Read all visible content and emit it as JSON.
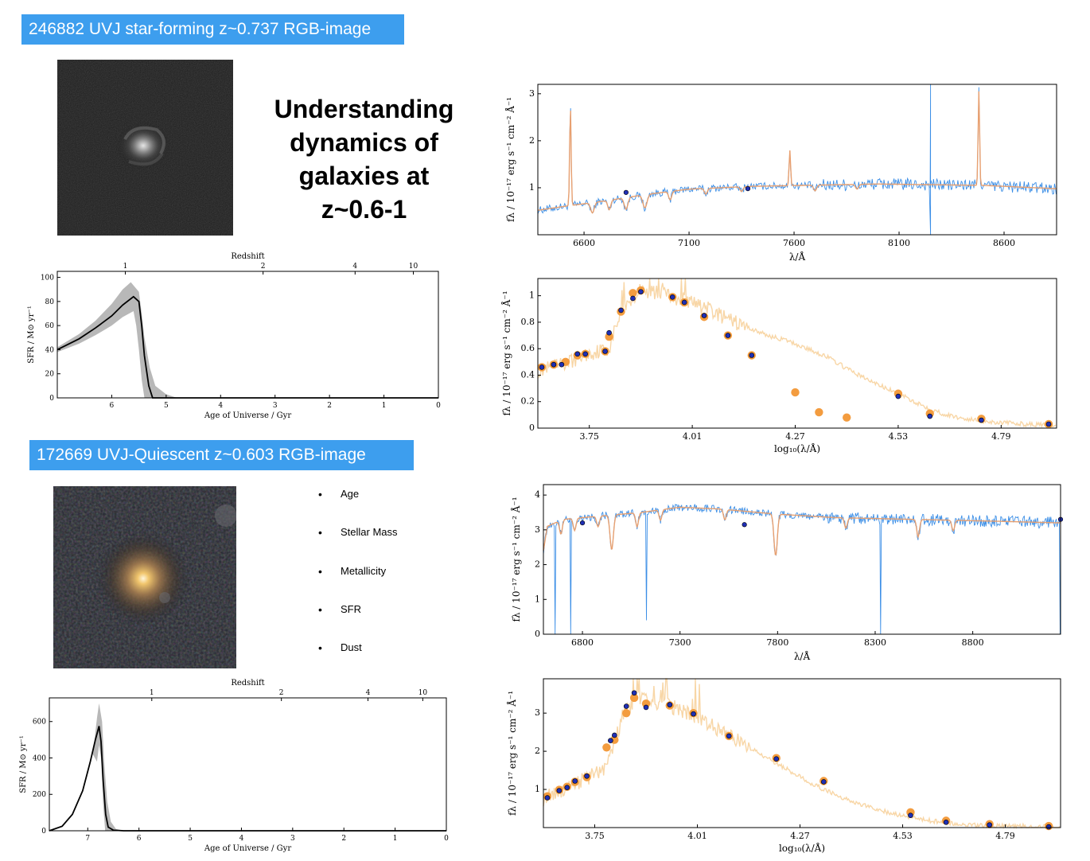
{
  "top_section": {
    "banner": "246882 UVJ star-forming z~0.737 RGB-image",
    "headline": [
      "Understanding",
      "dynamics of",
      "galaxies at",
      "z~0.6-1"
    ]
  },
  "bottom_section": {
    "banner": "172669 UVJ-Quiescent z~0.603 RGB-image",
    "bullets": [
      "Age",
      "Stellar Mass",
      "Metallicity",
      "SFR",
      "Dust"
    ]
  },
  "colors": {
    "banner": "#3d9eee",
    "observed_spectrum": "#3b8ee6",
    "model_spectrum": "#e8a070",
    "model_sed": "#f8d6a6",
    "model_photometry": "#f39c3f",
    "observed_photometry": "#1f2fb5",
    "sfh_band": "#b8b8b8"
  },
  "chart_data": [
    {
      "id": "sfh1",
      "type": "line",
      "xlabel": "Age of Universe / Gyr",
      "ylabel": "SFR / M⊙ yr⁻¹",
      "top_label": "Redshift",
      "xlim": [
        7.0,
        0.0
      ],
      "ylim": [
        0,
        105
      ],
      "xticks": [
        6,
        5,
        4,
        3,
        2,
        1,
        0
      ],
      "yticks": [
        0,
        20,
        40,
        60,
        80,
        100
      ],
      "top_ticks": [
        {
          "label": "1",
          "x": 5.75
        },
        {
          "label": "2",
          "x": 3.22
        },
        {
          "label": "4",
          "x": 1.53
        },
        {
          "label": "10",
          "x": 0.46
        }
      ],
      "median": [
        [
          7.0,
          40
        ],
        [
          6.6,
          49
        ],
        [
          6.3,
          58
        ],
        [
          6.0,
          68
        ],
        [
          5.8,
          77
        ],
        [
          5.6,
          84
        ],
        [
          5.5,
          80
        ],
        [
          5.45,
          60
        ],
        [
          5.4,
          35
        ],
        [
          5.32,
          10
        ],
        [
          5.25,
          0
        ],
        [
          0,
          0
        ]
      ],
      "band_upper": [
        [
          7.0,
          42
        ],
        [
          6.6,
          53
        ],
        [
          6.3,
          64
        ],
        [
          6.0,
          78
        ],
        [
          5.8,
          90
        ],
        [
          5.65,
          96
        ],
        [
          5.5,
          88
        ],
        [
          5.45,
          70
        ],
        [
          5.4,
          50
        ],
        [
          5.3,
          25
        ],
        [
          5.2,
          10
        ],
        [
          5.0,
          3
        ],
        [
          4.8,
          0
        ]
      ],
      "band_lower": [
        [
          7.0,
          38
        ],
        [
          6.6,
          45
        ],
        [
          6.3,
          52
        ],
        [
          6.0,
          60
        ],
        [
          5.8,
          67
        ],
        [
          5.6,
          72
        ],
        [
          5.55,
          60
        ],
        [
          5.5,
          40
        ],
        [
          5.45,
          15
        ],
        [
          5.4,
          0
        ]
      ]
    },
    {
      "id": "sfh2",
      "type": "line",
      "xlabel": "Age of Universe / Gyr",
      "ylabel": "SFR / M⊙ yr⁻¹",
      "top_label": "Redshift",
      "xlim": [
        7.75,
        0.0
      ],
      "ylim": [
        0,
        730
      ],
      "xticks": [
        7,
        6,
        5,
        4,
        3,
        2,
        1,
        0
      ],
      "yticks": [
        0,
        200,
        400,
        600
      ],
      "top_ticks": [
        {
          "label": "1",
          "x": 5.75
        },
        {
          "label": "2",
          "x": 3.22
        },
        {
          "label": "4",
          "x": 1.53
        },
        {
          "label": "10",
          "x": 0.46
        }
      ],
      "median": [
        [
          7.75,
          0
        ],
        [
          7.5,
          25
        ],
        [
          7.3,
          90
        ],
        [
          7.1,
          220
        ],
        [
          6.95,
          380
        ],
        [
          6.85,
          500
        ],
        [
          6.78,
          575
        ],
        [
          6.74,
          490
        ],
        [
          6.7,
          280
        ],
        [
          6.65,
          90
        ],
        [
          6.6,
          20
        ],
        [
          6.5,
          3
        ],
        [
          6.3,
          0
        ],
        [
          0,
          0
        ]
      ],
      "band_upper": [
        [
          6.9,
          420
        ],
        [
          6.82,
          620
        ],
        [
          6.78,
          700
        ],
        [
          6.72,
          600
        ],
        [
          6.68,
          380
        ],
        [
          6.62,
          160
        ],
        [
          6.55,
          50
        ],
        [
          6.45,
          10
        ],
        [
          6.3,
          0
        ]
      ],
      "band_lower": [
        [
          6.82,
          380
        ],
        [
          6.78,
          470
        ],
        [
          6.74,
          400
        ],
        [
          6.7,
          150
        ],
        [
          6.66,
          0
        ]
      ]
    },
    {
      "id": "spec1",
      "type": "line",
      "xlabel": "λ/Å",
      "ylabel": "fλ / 10⁻¹⁷ erg s⁻¹ cm⁻² Å⁻¹",
      "xlim": [
        6380,
        8850
      ],
      "ylim": [
        0,
        3.2
      ],
      "xticks": [
        6600,
        7100,
        7600,
        8100,
        8600
      ],
      "yticks": [
        1,
        2,
        3
      ],
      "continuum": [
        [
          6380,
          0.52
        ],
        [
          6500,
          0.6
        ],
        [
          6700,
          0.72
        ],
        [
          6900,
          0.86
        ],
        [
          7100,
          0.97
        ],
        [
          7400,
          1.03
        ],
        [
          8000,
          1.08
        ],
        [
          8500,
          1.05
        ],
        [
          8850,
          0.98
        ]
      ],
      "absorptions": [
        [
          6640,
          0.22,
          12
        ],
        [
          6720,
          0.2,
          10
        ],
        [
          6800,
          0.25,
          12
        ],
        [
          6890,
          0.28,
          14
        ],
        [
          7010,
          0.18,
          10
        ],
        [
          7180,
          0.12,
          10
        ],
        [
          7350,
          0.1,
          10
        ],
        [
          7700,
          0.12,
          10
        ],
        [
          7900,
          0.1,
          10
        ]
      ],
      "emissions": [
        [
          6535,
          2.1,
          5
        ],
        [
          7580,
          0.75,
          5
        ],
        [
          8480,
          2.0,
          5
        ]
      ],
      "spikes": [
        [
          8250,
          3.2
        ],
        [
          8250,
          0.0
        ]
      ],
      "photometry": [
        [
          6800,
          0.9
        ],
        [
          7380,
          0.98
        ]
      ]
    },
    {
      "id": "sed1",
      "type": "scatter",
      "xlabel": "log₁₀(λ/Å)",
      "ylabel": "fλ / 10⁻¹⁷ erg s⁻¹ cm⁻² Å⁻¹",
      "xlim": [
        3.62,
        4.93
      ],
      "ylim": [
        0,
        1.13
      ],
      "xticks": [
        3.75,
        4.01,
        4.27,
        4.53,
        4.79
      ],
      "yticks": [
        0.0,
        0.2,
        0.4,
        0.6,
        0.8,
        1.0
      ],
      "model_curve": [
        [
          3.62,
          0.43
        ],
        [
          3.66,
          0.46
        ],
        [
          3.7,
          0.5
        ],
        [
          3.74,
          0.55
        ],
        [
          3.78,
          0.59
        ],
        [
          3.8,
          0.6
        ],
        [
          3.82,
          0.8
        ],
        [
          3.84,
          0.9
        ],
        [
          3.86,
          0.98
        ],
        [
          3.88,
          1.05
        ],
        [
          3.92,
          1.02
        ],
        [
          3.96,
          0.99
        ],
        [
          4.0,
          0.96
        ],
        [
          4.05,
          0.9
        ],
        [
          4.1,
          0.82
        ],
        [
          4.15,
          0.76
        ],
        [
          4.2,
          0.7
        ],
        [
          4.25,
          0.66
        ],
        [
          4.3,
          0.6
        ],
        [
          4.35,
          0.54
        ],
        [
          4.4,
          0.45
        ],
        [
          4.45,
          0.37
        ],
        [
          4.5,
          0.3
        ],
        [
          4.55,
          0.23
        ],
        [
          4.6,
          0.16
        ],
        [
          4.65,
          0.1
        ],
        [
          4.7,
          0.07
        ],
        [
          4.75,
          0.05
        ],
        [
          4.8,
          0.04
        ],
        [
          4.85,
          0.03
        ],
        [
          4.93,
          0.02
        ]
      ],
      "model_points": [
        [
          3.63,
          0.46
        ],
        [
          3.66,
          0.48
        ],
        [
          3.69,
          0.5
        ],
        [
          3.72,
          0.55
        ],
        [
          3.74,
          0.56
        ],
        [
          3.79,
          0.58
        ],
        [
          3.8,
          0.69
        ],
        [
          3.83,
          0.88
        ],
        [
          3.86,
          1.02
        ],
        [
          3.88,
          1.04
        ],
        [
          3.96,
          0.99
        ],
        [
          3.99,
          0.95
        ],
        [
          4.04,
          0.84
        ],
        [
          4.1,
          0.7
        ],
        [
          4.16,
          0.55
        ],
        [
          4.27,
          0.27
        ],
        [
          4.33,
          0.12
        ],
        [
          4.4,
          0.08
        ],
        [
          4.53,
          0.26
        ],
        [
          4.61,
          0.11
        ],
        [
          4.74,
          0.07
        ],
        [
          4.91,
          0.03
        ]
      ],
      "observed_points": [
        [
          3.63,
          0.46
        ],
        [
          3.66,
          0.48
        ],
        [
          3.68,
          0.48
        ],
        [
          3.72,
          0.56
        ],
        [
          3.74,
          0.56
        ],
        [
          3.79,
          0.58
        ],
        [
          3.8,
          0.72
        ],
        [
          3.83,
          0.89
        ],
        [
          3.86,
          0.98
        ],
        [
          3.88,
          1.03
        ],
        [
          3.96,
          0.99
        ],
        [
          3.99,
          0.95
        ],
        [
          4.04,
          0.85
        ],
        [
          4.1,
          0.7
        ],
        [
          4.16,
          0.55
        ],
        [
          4.53,
          0.24
        ],
        [
          4.61,
          0.09
        ],
        [
          4.74,
          0.06
        ],
        [
          4.91,
          0.03
        ]
      ]
    },
    {
      "id": "spec2",
      "type": "line",
      "xlabel": "λ/Å",
      "ylabel": "fλ / 10⁻¹⁷ erg s⁻¹ cm⁻² Å⁻¹",
      "xlim": [
        6600,
        9250
      ],
      "ylim": [
        0,
        4.3
      ],
      "xticks": [
        6800,
        7300,
        7800,
        8300,
        8800
      ],
      "yticks": [
        0,
        1,
        2,
        3,
        4
      ],
      "continuum": [
        [
          6600,
          2.4
        ],
        [
          6620,
          3.1
        ],
        [
          6700,
          3.3
        ],
        [
          6900,
          3.4
        ],
        [
          7100,
          3.5
        ],
        [
          7300,
          3.65
        ],
        [
          7500,
          3.6
        ],
        [
          7800,
          3.45
        ],
        [
          8100,
          3.35
        ],
        [
          8500,
          3.3
        ],
        [
          8900,
          3.25
        ],
        [
          9250,
          3.2
        ]
      ],
      "absorptions": [
        [
          6690,
          0.4,
          10
        ],
        [
          6760,
          0.35,
          10
        ],
        [
          6880,
          0.3,
          10
        ],
        [
          6950,
          1.0,
          12
        ],
        [
          7080,
          0.4,
          10
        ],
        [
          7200,
          0.3,
          10
        ],
        [
          7530,
          0.3,
          10
        ],
        [
          7790,
          1.2,
          12
        ],
        [
          8150,
          0.3,
          10
        ],
        [
          8520,
          0.5,
          10
        ],
        [
          8700,
          0.3,
          10
        ]
      ],
      "dips": [
        [
          6660,
          0.0
        ],
        [
          6740,
          0.0
        ],
        [
          7130,
          0.4
        ],
        [
          8330,
          0.0
        ],
        [
          9250,
          0.0
        ]
      ],
      "photometry": [
        [
          6800,
          3.2
        ],
        [
          7630,
          3.15
        ],
        [
          9250,
          3.3
        ]
      ]
    },
    {
      "id": "sed2",
      "type": "scatter",
      "xlabel": "log₁₀(λ/Å)",
      "ylabel": "fλ / 10⁻¹⁷ erg s⁻¹ cm⁻² Å⁻¹",
      "xlim": [
        3.62,
        4.93
      ],
      "ylim": [
        0,
        3.9
      ],
      "xticks": [
        3.75,
        4.01,
        4.27,
        4.53,
        4.79
      ],
      "yticks": [
        1,
        2,
        3
      ],
      "model_curve": [
        [
          3.62,
          0.75
        ],
        [
          3.66,
          0.95
        ],
        [
          3.7,
          1.15
        ],
        [
          3.74,
          1.35
        ],
        [
          3.78,
          1.6
        ],
        [
          3.8,
          2.2
        ],
        [
          3.82,
          2.9
        ],
        [
          3.84,
          3.2
        ],
        [
          3.86,
          3.35
        ],
        [
          3.9,
          3.3
        ],
        [
          3.95,
          3.15
        ],
        [
          4.0,
          2.95
        ],
        [
          4.05,
          2.65
        ],
        [
          4.1,
          2.35
        ],
        [
          4.15,
          2.05
        ],
        [
          4.2,
          1.75
        ],
        [
          4.25,
          1.45
        ],
        [
          4.3,
          1.15
        ],
        [
          4.35,
          0.9
        ],
        [
          4.4,
          0.7
        ],
        [
          4.45,
          0.52
        ],
        [
          4.5,
          0.38
        ],
        [
          4.55,
          0.27
        ],
        [
          4.6,
          0.18
        ],
        [
          4.65,
          0.11
        ],
        [
          4.7,
          0.07
        ],
        [
          4.8,
          0.04
        ],
        [
          4.93,
          0.02
        ]
      ],
      "model_points": [
        [
          3.63,
          0.82
        ],
        [
          3.66,
          0.99
        ],
        [
          3.68,
          1.07
        ],
        [
          3.7,
          1.2
        ],
        [
          3.73,
          1.32
        ],
        [
          3.78,
          2.1
        ],
        [
          3.8,
          2.3
        ],
        [
          3.83,
          3.0
        ],
        [
          3.85,
          3.4
        ],
        [
          3.88,
          3.25
        ],
        [
          3.94,
          3.2
        ],
        [
          4.0,
          3.0
        ],
        [
          4.09,
          2.4
        ],
        [
          4.21,
          1.82
        ],
        [
          4.33,
          1.22
        ],
        [
          4.55,
          0.4
        ],
        [
          4.64,
          0.18
        ],
        [
          4.75,
          0.09
        ],
        [
          4.9,
          0.04
        ]
      ],
      "observed_points": [
        [
          3.63,
          0.78
        ],
        [
          3.66,
          0.97
        ],
        [
          3.68,
          1.05
        ],
        [
          3.7,
          1.22
        ],
        [
          3.73,
          1.35
        ],
        [
          3.79,
          2.28
        ],
        [
          3.8,
          2.42
        ],
        [
          3.83,
          3.18
        ],
        [
          3.85,
          3.53
        ],
        [
          3.88,
          3.15
        ],
        [
          3.94,
          3.22
        ],
        [
          4.0,
          2.98
        ],
        [
          4.09,
          2.4
        ],
        [
          4.21,
          1.8
        ],
        [
          4.33,
          1.2
        ],
        [
          4.55,
          0.32
        ],
        [
          4.64,
          0.14
        ],
        [
          4.75,
          0.07
        ],
        [
          4.9,
          0.02
        ]
      ]
    }
  ]
}
